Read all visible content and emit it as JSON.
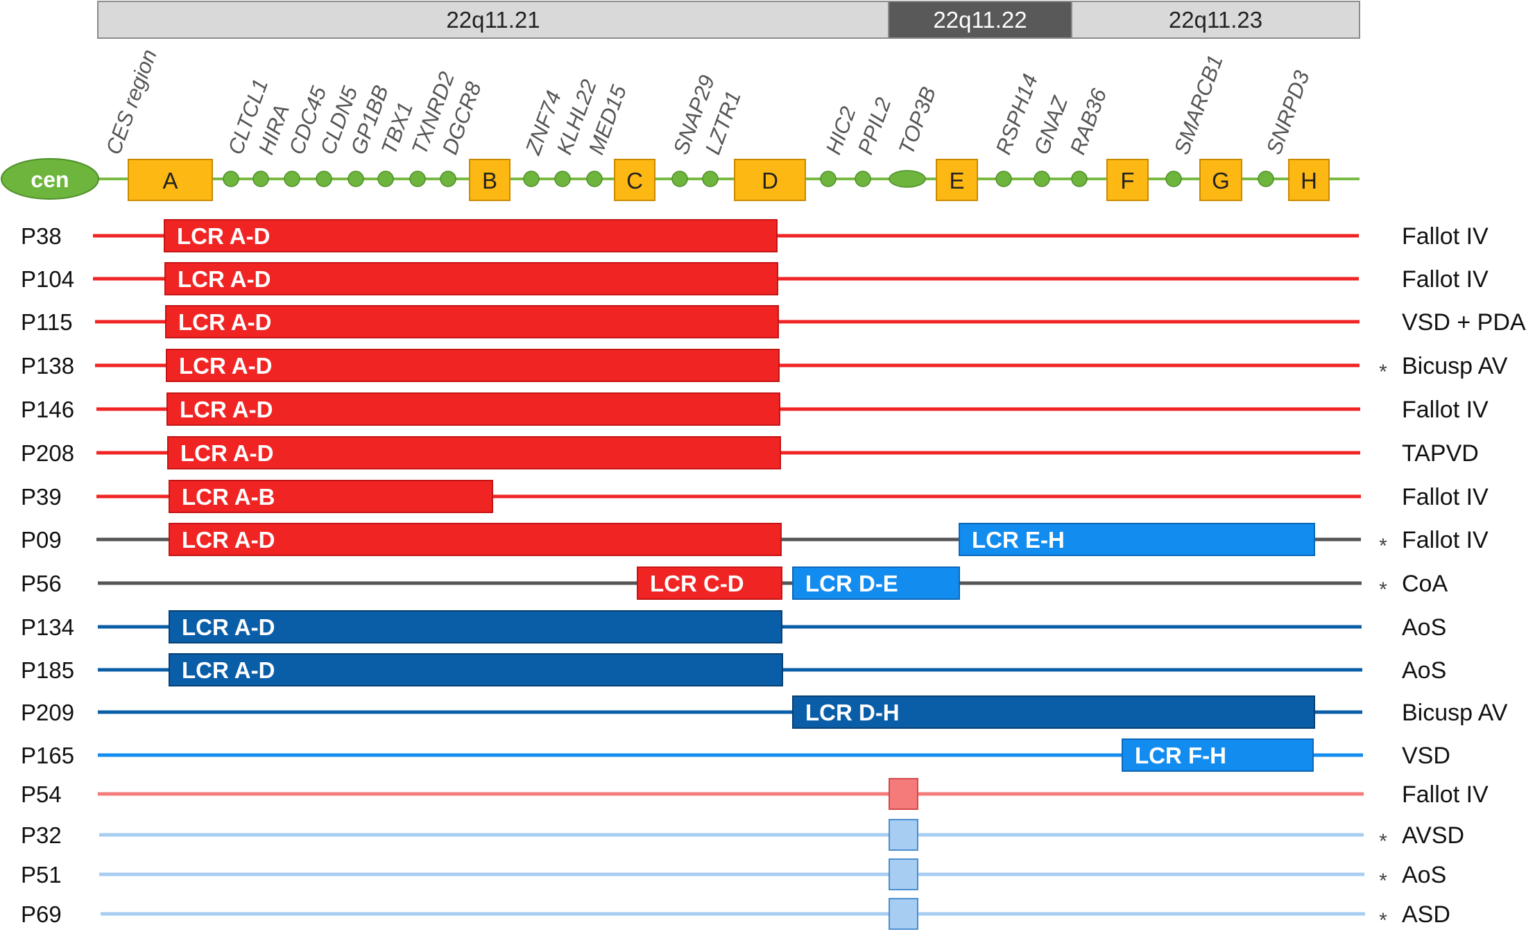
{
  "bands": [
    {
      "label": "22q11.21",
      "x1": 0,
      "x2": 0
    },
    {
      "label": "22q11.22",
      "x1": 0,
      "x2": 0
    },
    {
      "label": "22q11.23",
      "x1": 0,
      "x2": 0
    }
  ],
  "centromere_label": "cen",
  "ces_region_label": "CES region",
  "lcrs": [
    "A",
    "B",
    "C",
    "D",
    "E",
    "F",
    "G",
    "H"
  ],
  "genes": [
    "CLTCL1",
    "HIRA",
    "CDC45",
    "CLDN5",
    "GP1BB",
    "TBX1",
    "TXNRD2",
    "DGCR8",
    "ZNF74",
    "KLHL22",
    "MED15",
    "SNAP29",
    "LZTR1",
    "HIC2",
    "PPIL2",
    "TOP3B",
    "RSPH14",
    "GNAZ",
    "RAB36",
    "SMARCB1",
    "SNRPD3"
  ],
  "colors": {
    "red": "#f12424",
    "red_light": "#f57b7b",
    "blue_dark": "#0a5ea8",
    "blue_mid": "#138cf0",
    "blue_light": "#a7cdf2",
    "grey_line": "#555555",
    "lcr_fill": "#fdb813",
    "lcr_stroke": "#c88a00",
    "chrom_line": "#7aba42",
    "gene_dot": "#6db53c",
    "band_light": "#d9d9d9",
    "band_dark": "#595959"
  },
  "patients": [
    {
      "id": "P38",
      "phenotype": "Fallot IV",
      "asterisk": false,
      "line": "red",
      "segments": [
        {
          "label": "LCR   A-D",
          "color": "red"
        }
      ]
    },
    {
      "id": "P104",
      "phenotype": "Fallot IV",
      "asterisk": false,
      "line": "red",
      "segments": [
        {
          "label": "LCR   A-D",
          "color": "red"
        }
      ]
    },
    {
      "id": "P115",
      "phenotype": "VSD + PDA",
      "asterisk": false,
      "line": "red",
      "segments": [
        {
          "label": "LCR   A-D",
          "color": "red"
        }
      ]
    },
    {
      "id": "P138",
      "phenotype": "Bicusp AV",
      "asterisk": true,
      "line": "red",
      "segments": [
        {
          "label": "LCR   A-D",
          "color": "red"
        }
      ]
    },
    {
      "id": "P146",
      "phenotype": "Fallot IV",
      "asterisk": false,
      "line": "red",
      "segments": [
        {
          "label": "LCR   A-D",
          "color": "red"
        }
      ]
    },
    {
      "id": "P208",
      "phenotype": "TAPVD",
      "asterisk": false,
      "line": "red",
      "segments": [
        {
          "label": "LCR   A-D",
          "color": "red"
        }
      ]
    },
    {
      "id": "P39",
      "phenotype": "Fallot IV",
      "asterisk": false,
      "line": "red",
      "segments": [
        {
          "label": "LCR   A-B",
          "color": "red"
        }
      ]
    },
    {
      "id": "P09",
      "phenotype": "Fallot IV",
      "asterisk": true,
      "line": "grey",
      "segments": [
        {
          "label": "LCR   A-D",
          "color": "red"
        },
        {
          "label": "LCR   E-H",
          "color": "blue_mid"
        }
      ]
    },
    {
      "id": "P56",
      "phenotype": "CoA",
      "asterisk": true,
      "line": "grey",
      "segments": [
        {
          "label": "LCR   C-D",
          "color": "red"
        },
        {
          "label": "LCR   D-E",
          "color": "blue_mid"
        }
      ]
    },
    {
      "id": "P134",
      "phenotype": "AoS",
      "asterisk": false,
      "line": "blue_dark",
      "segments": [
        {
          "label": "LCR   A-D",
          "color": "blue_dark"
        }
      ]
    },
    {
      "id": "P185",
      "phenotype": "AoS",
      "asterisk": false,
      "line": "blue_dark",
      "segments": [
        {
          "label": "LCR   A-D",
          "color": "blue_dark"
        }
      ]
    },
    {
      "id": "P209",
      "phenotype": "Bicusp AV",
      "asterisk": false,
      "line": "blue_dark",
      "segments": [
        {
          "label": "LCR   D-H",
          "color": "blue_dark"
        }
      ]
    },
    {
      "id": "P165",
      "phenotype": "VSD",
      "asterisk": false,
      "line": "blue_mid",
      "segments": [
        {
          "label": "LCR   F-H",
          "color": "blue_mid"
        }
      ]
    },
    {
      "id": "P54",
      "phenotype": "Fallot IV",
      "asterisk": false,
      "line": "red_light",
      "segments": [
        {
          "label": "",
          "color": "red_light"
        }
      ]
    },
    {
      "id": "P32",
      "phenotype": "AVSD",
      "asterisk": true,
      "line": "blue_light",
      "segments": [
        {
          "label": "",
          "color": "blue_light"
        }
      ]
    },
    {
      "id": "P51",
      "phenotype": "AoS",
      "asterisk": true,
      "line": "blue_light",
      "segments": [
        {
          "label": "",
          "color": "blue_light"
        }
      ]
    },
    {
      "id": "P69",
      "phenotype": "ASD",
      "asterisk": true,
      "line": "blue_light",
      "segments": [
        {
          "label": "",
          "color": "blue_light"
        }
      ]
    }
  ],
  "asterisk_symbol": "*"
}
